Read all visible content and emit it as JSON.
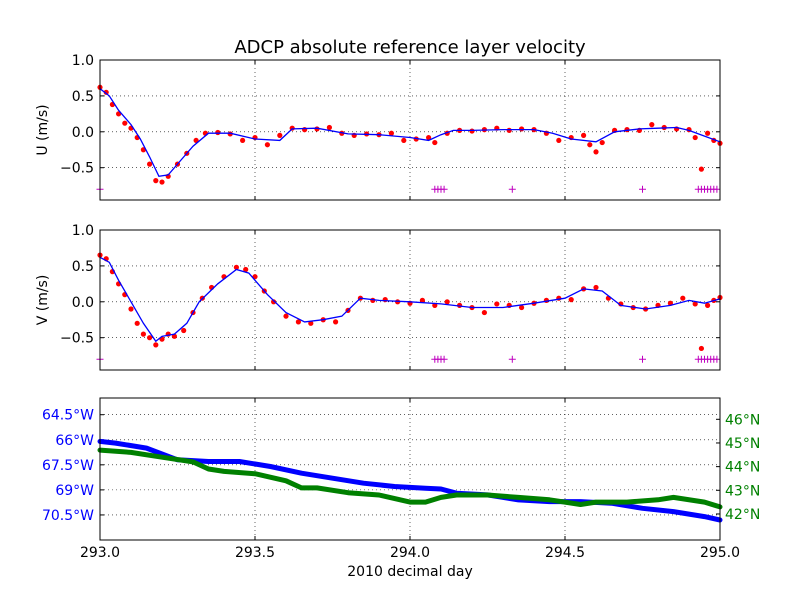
{
  "figure": {
    "title": "ADCP absolute reference layer velocity",
    "xlabel": "2010 decimal day"
  },
  "chart_data": [
    {
      "type": "scatter",
      "panel": "u",
      "title": "ADCP absolute reference layer velocity",
      "ylabel": "U (m/s)",
      "xlim": [
        293.0,
        295.0
      ],
      "ylim": [
        -0.95,
        1.0
      ],
      "yticks": [
        "1.0",
        "0.5",
        "0.0",
        "−0.5"
      ],
      "ytick_values": [
        1.0,
        0.5,
        0.0,
        -0.5
      ],
      "grid": true,
      "series": [
        {
          "kind": "dots",
          "color": "#ff0000",
          "x": [
            293.0,
            293.02,
            293.04,
            293.06,
            293.08,
            293.1,
            293.12,
            293.14,
            293.16,
            293.18,
            293.2,
            293.22,
            293.25,
            293.28,
            293.31,
            293.34,
            293.38,
            293.42,
            293.46,
            293.5,
            293.54,
            293.58,
            293.62,
            293.66,
            293.7,
            293.74,
            293.78,
            293.82,
            293.86,
            293.9,
            293.94,
            293.98,
            294.02,
            294.06,
            294.08,
            294.12,
            294.16,
            294.2,
            294.24,
            294.28,
            294.32,
            294.36,
            294.4,
            294.44,
            294.48,
            294.52,
            294.56,
            294.58,
            294.6,
            294.62,
            294.66,
            294.7,
            294.74,
            294.78,
            294.82,
            294.86,
            294.9,
            294.92,
            294.94,
            294.96,
            294.98,
            295.0
          ],
          "y": [
            0.62,
            0.55,
            0.38,
            0.25,
            0.12,
            0.05,
            -0.08,
            -0.25,
            -0.45,
            -0.68,
            -0.7,
            -0.62,
            -0.45,
            -0.3,
            -0.12,
            -0.02,
            -0.01,
            -0.03,
            -0.12,
            -0.08,
            -0.18,
            -0.05,
            0.05,
            0.03,
            0.04,
            0.06,
            -0.02,
            -0.05,
            -0.03,
            -0.04,
            -0.02,
            -0.12,
            -0.1,
            -0.08,
            -0.15,
            -0.02,
            0.02,
            0.01,
            0.03,
            0.05,
            0.02,
            0.04,
            0.03,
            -0.02,
            -0.12,
            -0.08,
            -0.05,
            -0.18,
            -0.28,
            -0.15,
            0.02,
            0.03,
            0.02,
            0.1,
            0.06,
            0.04,
            0.03,
            -0.08,
            -0.52,
            -0.02,
            -0.12,
            -0.16
          ]
        },
        {
          "kind": "line",
          "color": "#0000ff",
          "x": [
            293.0,
            293.03,
            293.06,
            293.1,
            293.13,
            293.16,
            293.19,
            293.22,
            293.26,
            293.3,
            293.35,
            293.42,
            293.5,
            293.58,
            293.62,
            293.7,
            293.8,
            293.9,
            294.0,
            294.06,
            294.1,
            294.14,
            294.2,
            294.3,
            294.4,
            294.46,
            294.52,
            294.6,
            294.66,
            294.74,
            294.8,
            294.86,
            294.9,
            294.95,
            295.0
          ],
          "y": [
            0.6,
            0.5,
            0.3,
            0.1,
            -0.1,
            -0.35,
            -0.62,
            -0.6,
            -0.4,
            -0.2,
            -0.02,
            -0.02,
            -0.1,
            -0.12,
            0.04,
            0.05,
            -0.03,
            -0.04,
            -0.08,
            -0.12,
            -0.04,
            0.02,
            0.02,
            0.03,
            0.03,
            -0.02,
            -0.1,
            -0.14,
            0.0,
            0.04,
            0.05,
            0.06,
            0.02,
            -0.06,
            -0.14
          ]
        },
        {
          "kind": "plus",
          "color": "#bf00bf",
          "x": [
            293.0,
            294.08,
            294.09,
            294.1,
            294.11,
            294.33,
            294.75,
            294.93,
            294.94,
            294.95,
            294.96,
            294.97,
            294.98,
            294.99
          ],
          "y": [
            -0.8,
            -0.8,
            -0.8,
            -0.8,
            -0.8,
            -0.8,
            -0.8,
            -0.8,
            -0.8,
            -0.8,
            -0.8,
            -0.8,
            -0.8,
            -0.8
          ]
        }
      ]
    },
    {
      "type": "scatter",
      "panel": "v",
      "ylabel": "V (m/s)",
      "xlim": [
        293.0,
        295.0
      ],
      "ylim": [
        -0.95,
        1.0
      ],
      "yticks": [
        "1.0",
        "0.5",
        "0.0",
        "−0.5"
      ],
      "ytick_values": [
        1.0,
        0.5,
        0.0,
        -0.5
      ],
      "grid": true,
      "series": [
        {
          "kind": "dots",
          "color": "#ff0000",
          "x": [
            293.0,
            293.02,
            293.04,
            293.06,
            293.08,
            293.1,
            293.12,
            293.14,
            293.16,
            293.18,
            293.2,
            293.22,
            293.24,
            293.27,
            293.3,
            293.33,
            293.36,
            293.4,
            293.44,
            293.47,
            293.5,
            293.53,
            293.56,
            293.6,
            293.64,
            293.68,
            293.72,
            293.76,
            293.8,
            293.84,
            293.88,
            293.92,
            293.96,
            294.0,
            294.04,
            294.08,
            294.12,
            294.16,
            294.2,
            294.24,
            294.28,
            294.32,
            294.36,
            294.4,
            294.44,
            294.48,
            294.52,
            294.56,
            294.6,
            294.64,
            294.68,
            294.72,
            294.76,
            294.8,
            294.84,
            294.88,
            294.92,
            294.94,
            294.96,
            294.98,
            295.0
          ],
          "y": [
            0.65,
            0.6,
            0.42,
            0.25,
            0.1,
            -0.1,
            -0.3,
            -0.45,
            -0.5,
            -0.6,
            -0.52,
            -0.45,
            -0.48,
            -0.4,
            -0.15,
            0.05,
            0.2,
            0.35,
            0.48,
            0.45,
            0.35,
            0.15,
            0.0,
            -0.2,
            -0.28,
            -0.3,
            -0.25,
            -0.28,
            -0.12,
            0.05,
            0.02,
            0.03,
            0.0,
            -0.02,
            0.02,
            -0.05,
            0.0,
            -0.05,
            -0.08,
            -0.15,
            -0.03,
            -0.05,
            -0.08,
            -0.02,
            0.02,
            0.05,
            0.03,
            0.18,
            0.2,
            0.05,
            -0.03,
            -0.08,
            -0.1,
            -0.05,
            -0.02,
            0.05,
            -0.03,
            -0.65,
            -0.05,
            0.02,
            0.06
          ]
        },
        {
          "kind": "line",
          "color": "#0000ff",
          "x": [
            293.0,
            293.03,
            293.06,
            293.1,
            293.14,
            293.18,
            293.2,
            293.24,
            293.28,
            293.32,
            293.38,
            293.44,
            293.48,
            293.54,
            293.6,
            293.66,
            293.72,
            293.78,
            293.84,
            293.9,
            294.0,
            294.1,
            294.2,
            294.3,
            294.4,
            294.5,
            294.56,
            294.62,
            294.68,
            294.76,
            294.84,
            294.9,
            294.95,
            295.0
          ],
          "y": [
            0.62,
            0.55,
            0.3,
            0.0,
            -0.3,
            -0.55,
            -0.48,
            -0.45,
            -0.3,
            0.0,
            0.25,
            0.45,
            0.4,
            0.1,
            -0.15,
            -0.28,
            -0.25,
            -0.2,
            0.05,
            0.02,
            0.0,
            -0.03,
            -0.08,
            -0.08,
            -0.02,
            0.05,
            0.18,
            0.15,
            -0.05,
            -0.1,
            -0.05,
            0.02,
            -0.02,
            0.04
          ]
        },
        {
          "kind": "plus",
          "color": "#bf00bf",
          "x": [
            293.0,
            294.08,
            294.09,
            294.1,
            294.11,
            294.33,
            294.75,
            294.93,
            294.94,
            294.95,
            294.96,
            294.97,
            294.98,
            294.99
          ],
          "y": [
            -0.8,
            -0.8,
            -0.8,
            -0.8,
            -0.8,
            -0.8,
            -0.8,
            -0.8,
            -0.8,
            -0.8,
            -0.8,
            -0.8,
            -0.8,
            -0.8
          ]
        }
      ]
    },
    {
      "type": "line",
      "panel": "position",
      "xlabel": "2010 decimal day",
      "xlim": [
        293.0,
        295.0
      ],
      "xticks": [
        "293.0",
        "293.5",
        "294.0",
        "294.5",
        "295.0"
      ],
      "xtick_values": [
        293.0,
        293.5,
        294.0,
        294.5,
        295.0
      ],
      "grid": true,
      "left_axis": {
        "color": "#0000ff",
        "ylim": [
          -72.0,
          -63.5
        ],
        "yticks": [
          "64.5°W",
          "66°W",
          "67.5°W",
          "69°W",
          "70.5°W"
        ],
        "ytick_values": [
          -64.5,
          -66.0,
          -67.5,
          -69.0,
          -70.5
        ]
      },
      "right_axis": {
        "color": "#008000",
        "ylim": [
          40.9,
          46.9
        ],
        "yticks": [
          "46°N",
          "45°N",
          "44°N",
          "43°N",
          "42°N"
        ],
        "ytick_values": [
          46,
          45,
          44,
          43,
          42
        ]
      },
      "series": [
        {
          "axis": "left",
          "color": "#0000ff",
          "x": [
            293.0,
            293.05,
            293.15,
            293.25,
            293.35,
            293.45,
            293.55,
            293.65,
            293.75,
            293.85,
            293.95,
            294.05,
            294.1,
            294.15,
            294.25,
            294.35,
            294.45,
            294.55,
            294.65,
            294.75,
            294.85,
            294.95,
            295.0
          ],
          "y": [
            -66.1,
            -66.2,
            -66.5,
            -67.2,
            -67.3,
            -67.3,
            -67.6,
            -68.0,
            -68.3,
            -68.6,
            -68.8,
            -68.9,
            -68.95,
            -69.2,
            -69.3,
            -69.6,
            -69.7,
            -69.7,
            -69.8,
            -70.1,
            -70.3,
            -70.6,
            -70.8
          ]
        },
        {
          "axis": "right",
          "color": "#008000",
          "x": [
            293.0,
            293.1,
            293.2,
            293.3,
            293.35,
            293.4,
            293.5,
            293.6,
            293.65,
            293.7,
            293.8,
            293.9,
            294.0,
            294.05,
            294.1,
            294.15,
            294.25,
            294.35,
            294.45,
            294.55,
            294.6,
            294.7,
            294.8,
            294.85,
            294.95,
            295.0
          ],
          "y": [
            44.7,
            44.6,
            44.4,
            44.2,
            43.9,
            43.8,
            43.7,
            43.4,
            43.1,
            43.1,
            42.9,
            42.8,
            42.5,
            42.5,
            42.7,
            42.8,
            42.8,
            42.7,
            42.6,
            42.4,
            42.5,
            42.5,
            42.6,
            42.7,
            42.5,
            42.3
          ]
        }
      ]
    }
  ]
}
